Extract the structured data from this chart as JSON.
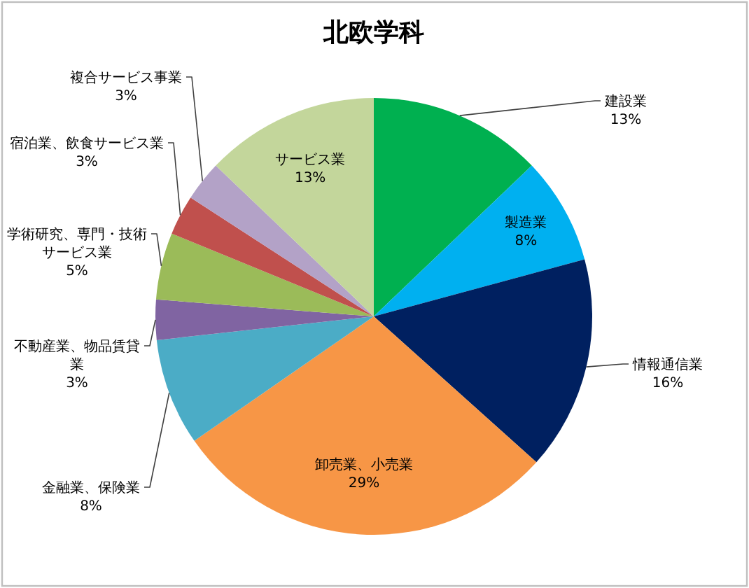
{
  "chart_data": {
    "type": "pie",
    "title": "北欧学科",
    "categories": [
      "建設業",
      "製造業",
      "情報通信業",
      "卸売業、小売業",
      "金融業、保険業",
      "不動産業、物品賃貸業",
      "学術研究、専門・技術サービス業",
      "宿泊業、飲食サービス業",
      "複合サービス事業",
      "サービス業"
    ],
    "values": [
      13,
      8,
      16,
      29,
      8,
      3,
      5,
      3,
      3,
      13
    ],
    "value_labels": [
      "13%",
      "8%",
      "16%",
      "29%",
      "8%",
      "3%",
      "5%",
      "3%",
      "3%",
      "13%"
    ],
    "colors": [
      "#00b050",
      "#00b0f0",
      "#002060",
      "#f79646",
      "#4bacc6",
      "#8064a2",
      "#9bbb59",
      "#c0504d",
      "#b3a2c7",
      "#c3d69b"
    ]
  }
}
